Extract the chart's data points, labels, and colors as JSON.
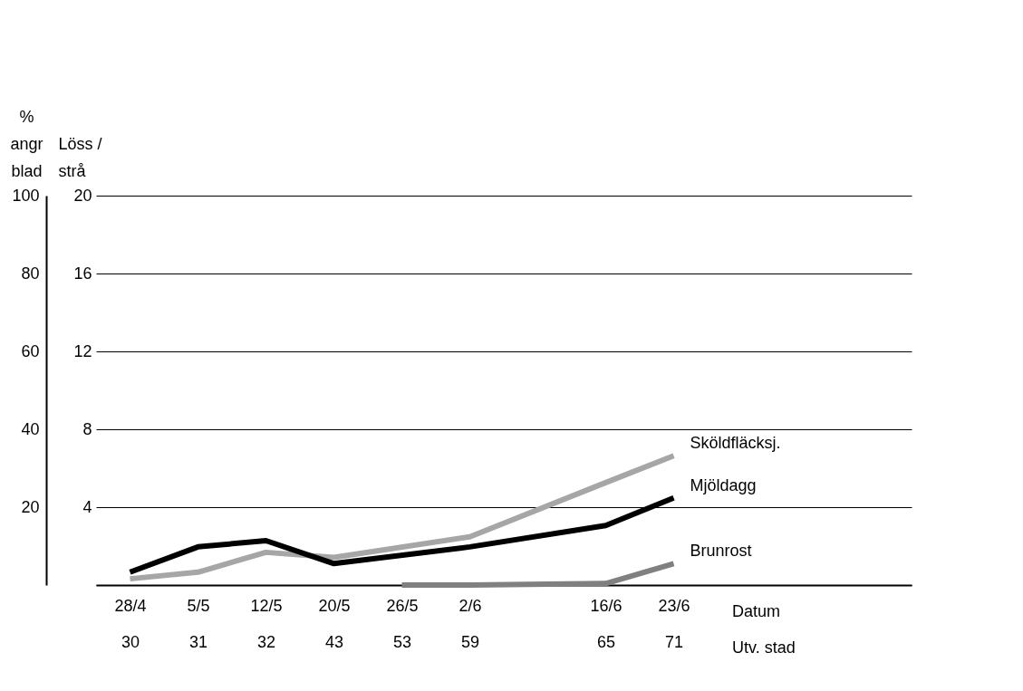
{
  "chart_data": {
    "type": "line",
    "categories": [
      "28/4\n30",
      "5/5\n31",
      "12/5\n32",
      "20/5\n43",
      "26/5\n53",
      "2/6\n59",
      null,
      "16/6\n65",
      "23/6\n71",
      null,
      null,
      null
    ],
    "ylabel": "%\nangr\nblad",
    "y2label": "Löss /\nstrå",
    "ylim": [
      0,
      100
    ],
    "yticks": [
      {
        "value": 0,
        "label": null
      },
      20,
      40,
      60,
      80,
      100
    ],
    "y2lim": [
      0,
      20
    ],
    "y2ticks": [
      {
        "value": 0,
        "label": null
      },
      4,
      8,
      12,
      16,
      20
    ],
    "annotations": [
      "Datum",
      "Utv. stad"
    ],
    "grid": "y",
    "series": [
      {
        "name": "Sköldfläcksj.",
        "color": "#a6a6a6",
        "values": [
          1.6,
          3.3,
          8.4,
          7.1,
          null,
          12.4,
          null,
          26.3,
          33.2,
          null,
          null,
          null
        ]
      },
      {
        "name": "Mjöldagg",
        "color": "#000000",
        "values": [
          3.3,
          9.8,
          11.4,
          5.5,
          null,
          9.8,
          null,
          15.3,
          22.4,
          null,
          null,
          null
        ]
      },
      {
        "name": "Brunrost",
        "color": "#808080",
        "values": [
          null,
          null,
          null,
          null,
          0,
          0,
          null,
          0.4,
          5.5,
          null,
          null,
          null
        ]
      }
    ]
  }
}
